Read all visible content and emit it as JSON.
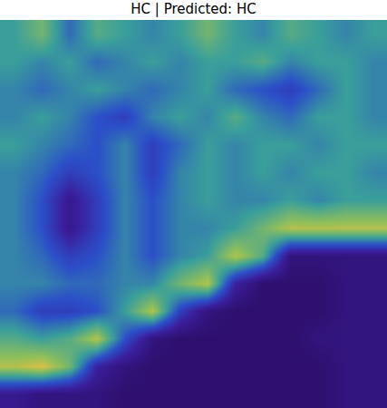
{
  "chart_data": {
    "type": "heatmap",
    "title": "HC | Predicted: HC",
    "tick_labels": false,
    "color_range": [
      0,
      1
    ],
    "cells": [
      [
        0.5,
        0.6,
        0.4,
        0.55,
        0.5,
        0.45,
        0.5,
        0.6,
        0.5,
        0.45,
        0.55,
        0.5,
        0.45,
        0.5
      ],
      [
        0.5,
        0.45,
        0.5,
        0.4,
        0.45,
        0.5,
        0.45,
        0.5,
        0.5,
        0.55,
        0.45,
        0.5,
        0.5,
        0.45
      ],
      [
        0.45,
        0.4,
        0.45,
        0.5,
        0.45,
        0.4,
        0.45,
        0.5,
        0.4,
        0.35,
        0.3,
        0.4,
        0.5,
        0.45
      ],
      [
        0.45,
        0.5,
        0.45,
        0.35,
        0.3,
        0.45,
        0.5,
        0.45,
        0.55,
        0.45,
        0.4,
        0.5,
        0.5,
        0.45
      ],
      [
        0.5,
        0.45,
        0.4,
        0.35,
        0.45,
        0.3,
        0.4,
        0.5,
        0.45,
        0.5,
        0.5,
        0.45,
        0.5,
        0.5
      ],
      [
        0.45,
        0.4,
        0.3,
        0.35,
        0.45,
        0.3,
        0.45,
        0.5,
        0.45,
        0.5,
        0.45,
        0.5,
        0.5,
        0.45
      ],
      [
        0.45,
        0.35,
        0.15,
        0.3,
        0.45,
        0.35,
        0.45,
        0.5,
        0.45,
        0.45,
        0.5,
        0.45,
        0.5,
        0.5
      ],
      [
        0.45,
        0.35,
        0.15,
        0.3,
        0.45,
        0.35,
        0.45,
        0.45,
        0.5,
        0.6,
        0.7,
        0.7,
        0.7,
        0.7
      ],
      [
        0.45,
        0.4,
        0.3,
        0.35,
        0.45,
        0.35,
        0.45,
        0.5,
        0.7,
        0.55,
        0.1,
        0.1,
        0.1,
        0.1
      ],
      [
        0.45,
        0.45,
        0.4,
        0.4,
        0.45,
        0.45,
        0.6,
        0.7,
        0.2,
        0.05,
        0.05,
        0.05,
        0.1,
        0.1
      ],
      [
        0.4,
        0.3,
        0.3,
        0.35,
        0.5,
        0.7,
        0.3,
        0.1,
        0.05,
        0.05,
        0.05,
        0.05,
        0.1,
        0.1
      ],
      [
        0.55,
        0.5,
        0.55,
        0.7,
        0.35,
        0.1,
        0.05,
        0.05,
        0.05,
        0.05,
        0.05,
        0.1,
        0.1,
        0.1
      ],
      [
        0.7,
        0.75,
        0.6,
        0.2,
        0.1,
        0.05,
        0.05,
        0.05,
        0.05,
        0.05,
        0.05,
        0.05,
        0.1,
        0.1
      ],
      [
        0.15,
        0.1,
        0.1,
        0.1,
        0.05,
        0.05,
        0.05,
        0.05,
        0.05,
        0.05,
        0.05,
        0.05,
        0.1,
        0.1
      ]
    ]
  }
}
